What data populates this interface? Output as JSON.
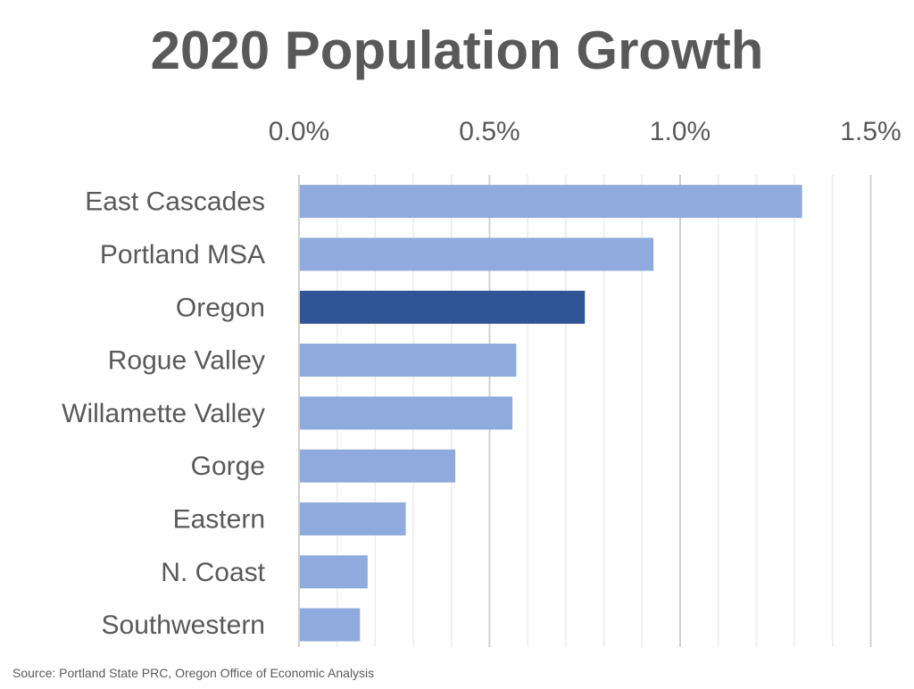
{
  "chart_data": {
    "type": "bar",
    "orientation": "horizontal",
    "title": "2020 Population Growth",
    "source": "Source: Portland State PRC, Oregon Office of Economic Analysis",
    "categories": [
      "East Cascades",
      "Portland MSA",
      "Oregon",
      "Rogue Valley",
      "Willamette Valley",
      "Gorge",
      "Eastern",
      "N. Coast",
      "Southwestern"
    ],
    "values": [
      1.32,
      0.93,
      0.75,
      0.57,
      0.56,
      0.41,
      0.28,
      0.18,
      0.16
    ],
    "unit": "%",
    "xlim": [
      0,
      1.5
    ],
    "x_ticks": [
      "0.0%",
      "0.5%",
      "1.0%",
      "1.5%"
    ],
    "x_axis_position": "top",
    "grid": true,
    "minor_grid_step": 0.1,
    "colors": {
      "default": "#8faadc",
      "highlight": "#2f5597",
      "highlight_category": "Oregon",
      "text": "#595959",
      "grid": "#d9d9d9"
    }
  }
}
